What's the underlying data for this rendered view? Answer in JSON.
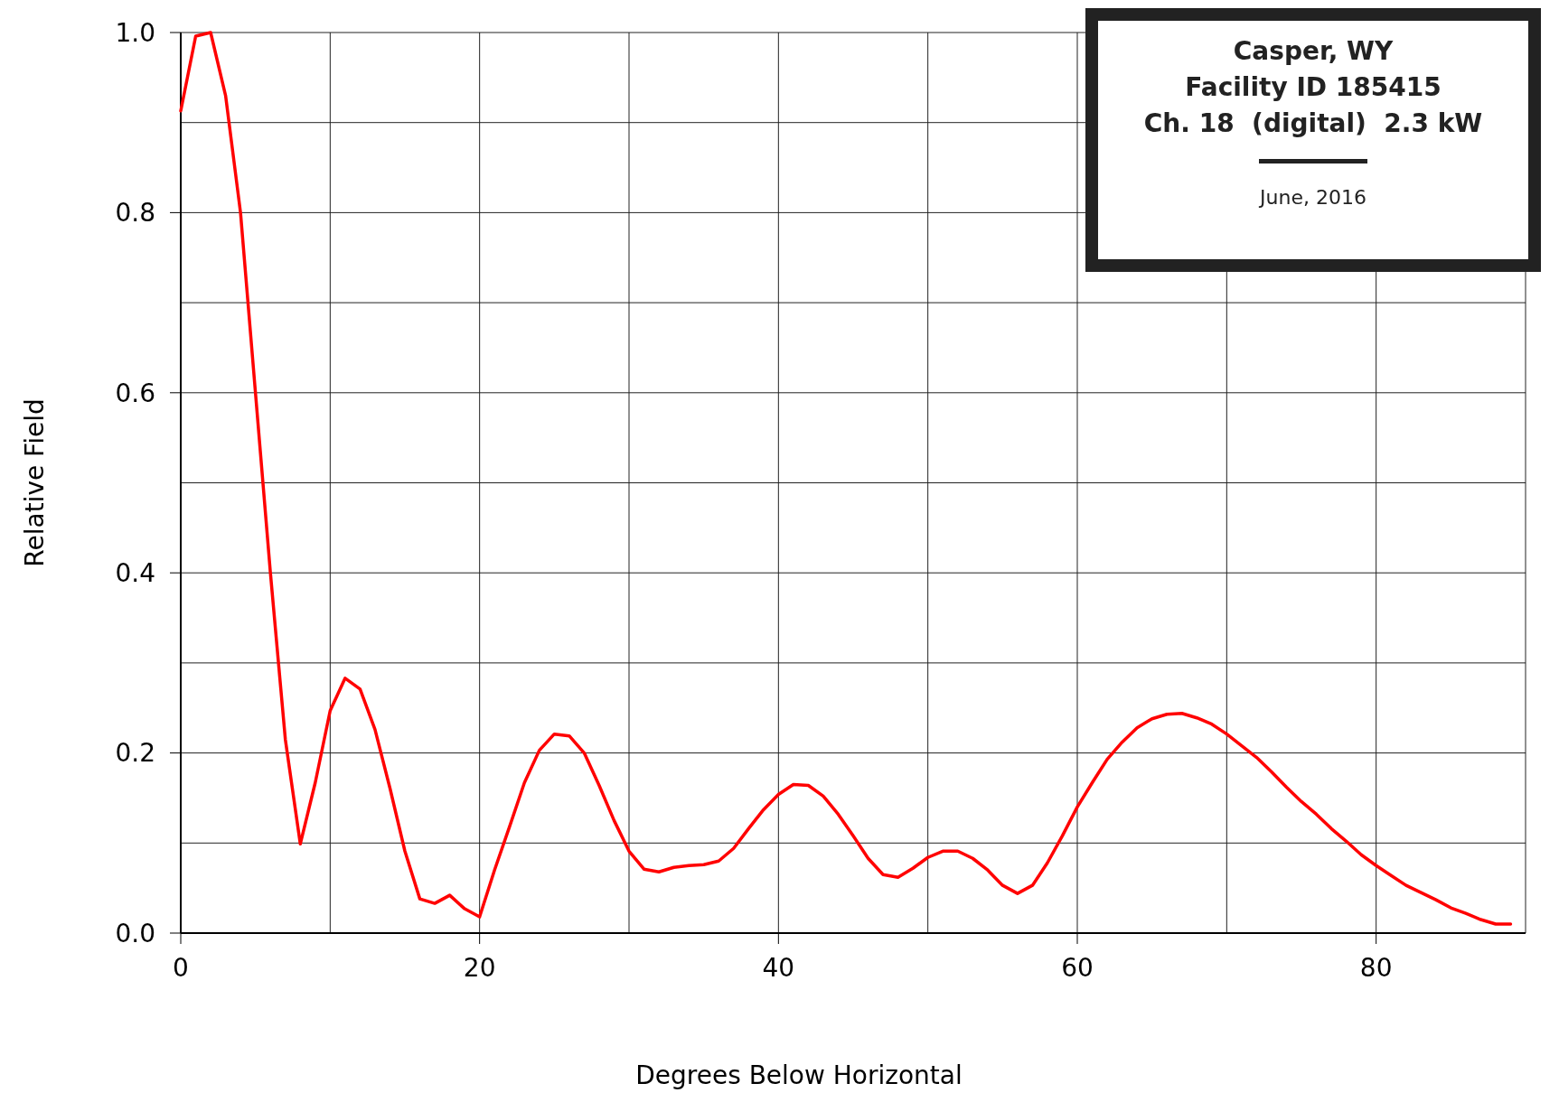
{
  "chart_data": {
    "type": "line",
    "xlabel": "Degrees Below Horizontal",
    "ylabel": "Relative Field",
    "annotations": [
      "Casper, WY",
      "Facility ID 185415",
      "Ch. 18  (digital)  2.3 kW",
      "June, 2016"
    ],
    "x": [
      0,
      1,
      2,
      3,
      4,
      5,
      6,
      7,
      8,
      9,
      10,
      11,
      12,
      13,
      14,
      15,
      16,
      17,
      18,
      19,
      20,
      21,
      22,
      23,
      24,
      25,
      26,
      27,
      28,
      29,
      30,
      31,
      32,
      33,
      34,
      35,
      36,
      37,
      38,
      39,
      40,
      41,
      42,
      43,
      44,
      45,
      46,
      47,
      48,
      49,
      50,
      51,
      52,
      53,
      54,
      55,
      56,
      57,
      58,
      59,
      60,
      61,
      62,
      63,
      64,
      65,
      66,
      67,
      68,
      69,
      70,
      71,
      72,
      73,
      74,
      75,
      76,
      77,
      78,
      79,
      80,
      81,
      82,
      83,
      84,
      85,
      86,
      87,
      88,
      89
    ],
    "series": [
      {
        "color": "#ff0000",
        "values": [
          0.913,
          0.996,
          1.0,
          0.93,
          0.8,
          0.6,
          0.4,
          0.215,
          0.099,
          0.167,
          0.247,
          0.283,
          0.271,
          0.226,
          0.161,
          0.091,
          0.038,
          0.033,
          0.042,
          0.027,
          0.018,
          0.07,
          0.118,
          0.167,
          0.203,
          0.221,
          0.219,
          0.2,
          0.164,
          0.125,
          0.091,
          0.071,
          0.068,
          0.073,
          0.075,
          0.076,
          0.08,
          0.094,
          0.116,
          0.137,
          0.154,
          0.165,
          0.164,
          0.152,
          0.132,
          0.108,
          0.083,
          0.065,
          0.062,
          0.072,
          0.084,
          0.091,
          0.091,
          0.083,
          0.07,
          0.053,
          0.044,
          0.053,
          0.078,
          0.108,
          0.14,
          0.167,
          0.193,
          0.212,
          0.228,
          0.238,
          0.243,
          0.244,
          0.239,
          0.232,
          0.221,
          0.208,
          0.195,
          0.179,
          0.162,
          0.146,
          0.132,
          0.116,
          0.102,
          0.087,
          0.075,
          0.064,
          0.053,
          0.045,
          0.037,
          0.028,
          0.022,
          0.015,
          0.01,
          0.01
        ]
      }
    ],
    "xlim": [
      0,
      90
    ],
    "xticks": [
      0,
      {
        "value": 10,
        "label": null
      },
      20,
      {
        "value": 30,
        "label": null
      },
      40,
      {
        "value": 50,
        "label": null
      },
      60,
      {
        "value": 70,
        "label": null
      },
      80,
      {
        "value": 90,
        "label": null
      }
    ],
    "ylim": [
      0,
      1
    ],
    "yticks": [
      {
        "value": 0,
        "label": "0.0"
      },
      {
        "value": 0.1,
        "label": null
      },
      {
        "value": 0.2,
        "label": "0.2"
      },
      {
        "value": 0.3,
        "label": null
      },
      {
        "value": 0.4,
        "label": "0.4"
      },
      {
        "value": 0.5,
        "label": null
      },
      {
        "value": 0.6,
        "label": "0.6"
      },
      {
        "value": 0.7,
        "label": null
      },
      {
        "value": 0.8,
        "label": "0.8"
      },
      {
        "value": 0.9,
        "label": null
      },
      {
        "value": 1,
        "label": "1.0"
      }
    ],
    "grid": true,
    "marker": "none",
    "line_style": "solid"
  }
}
